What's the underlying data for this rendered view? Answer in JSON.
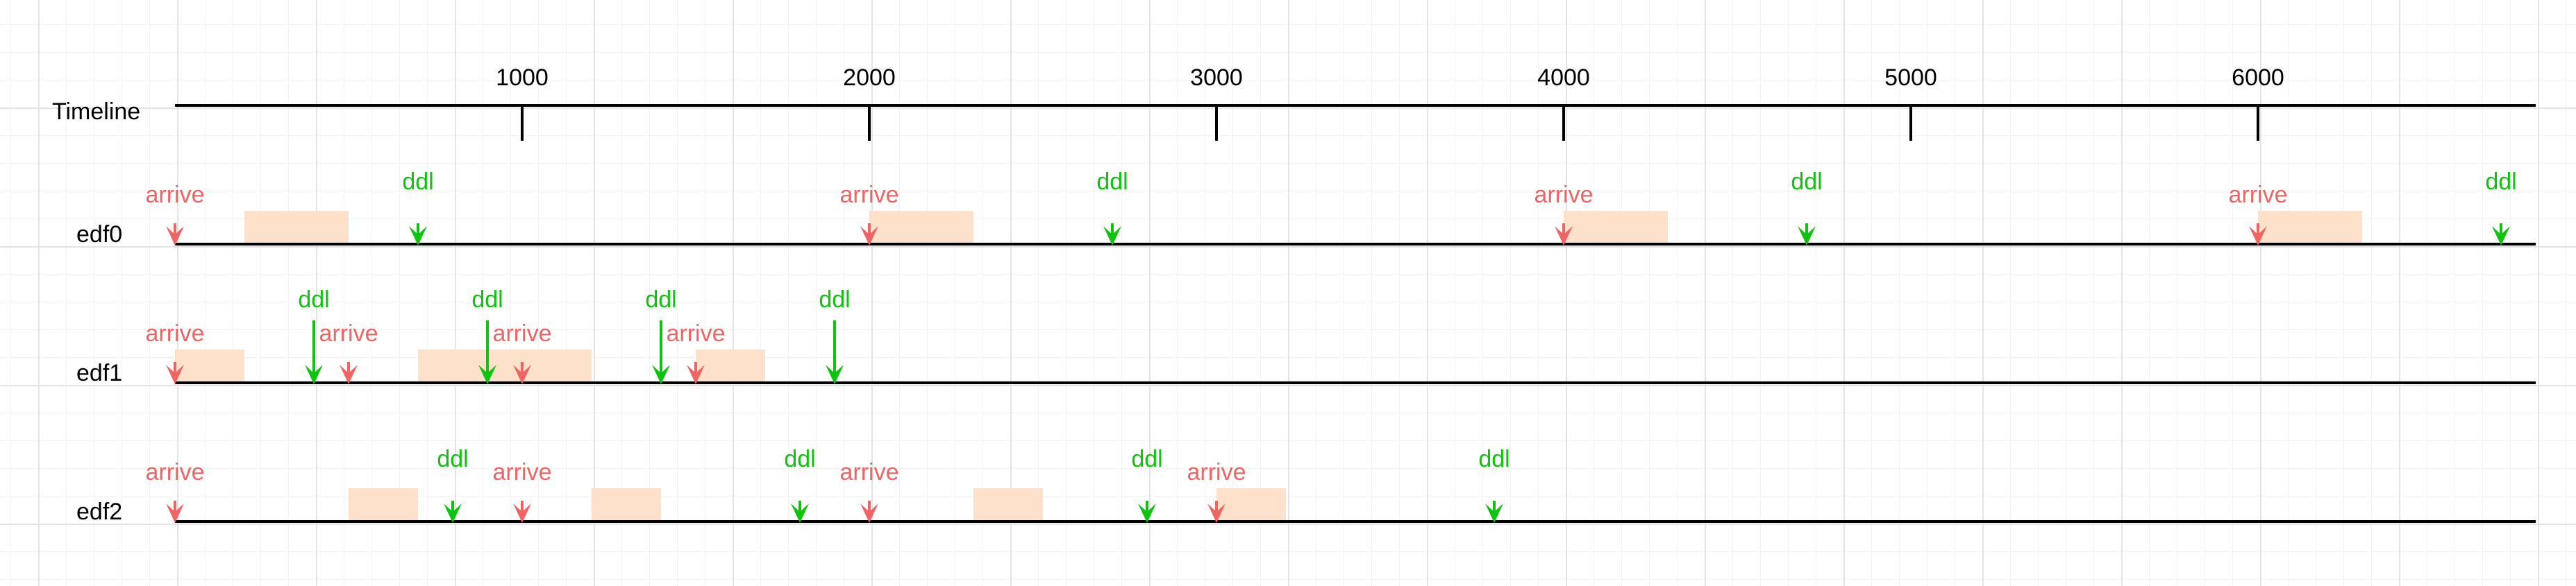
{
  "timeline": {
    "label": "Timeline",
    "ticks": [
      1000,
      2000,
      3000,
      4000,
      5000,
      6000
    ]
  },
  "colors": {
    "arrive": "#f06464",
    "ddl": "#11c311",
    "exec": "#fde1ca",
    "line": "#000000",
    "text": "#000000"
  },
  "rows": [
    {
      "label": "edf0",
      "arrive_label": "arrive",
      "ddl_label": "ddl",
      "arrivals": [
        0,
        2000,
        4000,
        6000
      ],
      "deadlines": [
        700,
        2700,
        4700,
        6700
      ],
      "exec": [
        [
          200,
          500
        ],
        [
          2000,
          2300
        ],
        [
          4000,
          4300
        ],
        [
          6000,
          6300
        ]
      ]
    },
    {
      "label": "edf1",
      "arrive_label": "arrive",
      "ddl_label": "ddl",
      "arrivals": [
        0,
        500,
        1000,
        1500
      ],
      "deadlines": [
        400,
        900,
        1400,
        1900
      ],
      "exec": [
        [
          0,
          200
        ],
        [
          700,
          1200
        ],
        [
          1500,
          1700
        ]
      ]
    },
    {
      "label": "edf2",
      "arrive_label": "arrive",
      "ddl_label": "ddl",
      "arrivals": [
        0,
        1000,
        2000,
        3000
      ],
      "deadlines": [
        800,
        1800,
        2800,
        3800
      ],
      "exec": [
        [
          500,
          700
        ],
        [
          1200,
          1400
        ],
        [
          2300,
          2500
        ],
        [
          3000,
          3200
        ]
      ]
    }
  ]
}
